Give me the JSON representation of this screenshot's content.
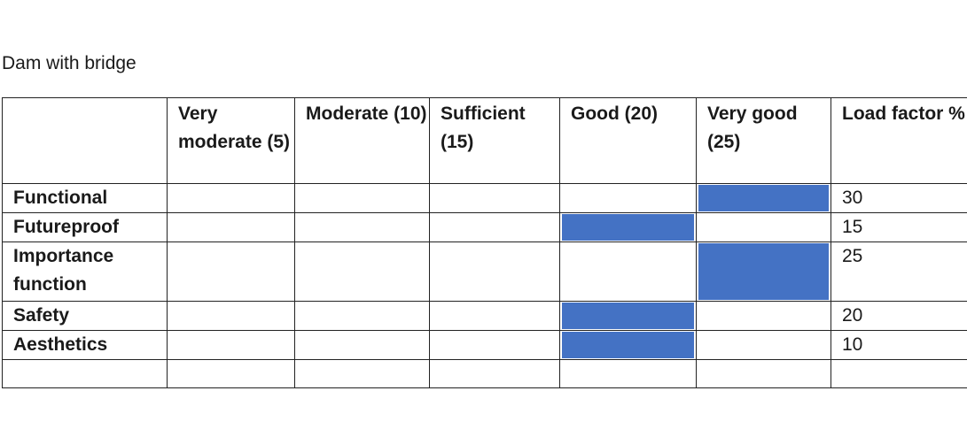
{
  "title": "Dam with bridge",
  "columns": [
    "",
    "Very moderate (5)",
    "Moderate (10)",
    "Sufficient (15)",
    "Good (20)",
    "Very good (25)",
    "Load factor %"
  ],
  "rows": [
    {
      "criterion": "Functional",
      "rating_column": "Very good (25)",
      "rating_score": 25,
      "load_factor": "30"
    },
    {
      "criterion": "Futureproof",
      "rating_column": "Good (20)",
      "rating_score": 20,
      "load_factor": "15"
    },
    {
      "criterion": "Importance function",
      "rating_column": "Very good (25)",
      "rating_score": 25,
      "load_factor": "25"
    },
    {
      "criterion": "Safety",
      "rating_column": "Good (20)",
      "rating_score": 20,
      "load_factor": "20"
    },
    {
      "criterion": "Aesthetics",
      "rating_column": "Good (20)",
      "rating_score": 20,
      "load_factor": "10"
    },
    {
      "criterion": "",
      "rating_column": "",
      "rating_score": null,
      "load_factor": ""
    }
  ],
  "colors": {
    "rating_fill": "#4472c4",
    "border": "#222222"
  }
}
